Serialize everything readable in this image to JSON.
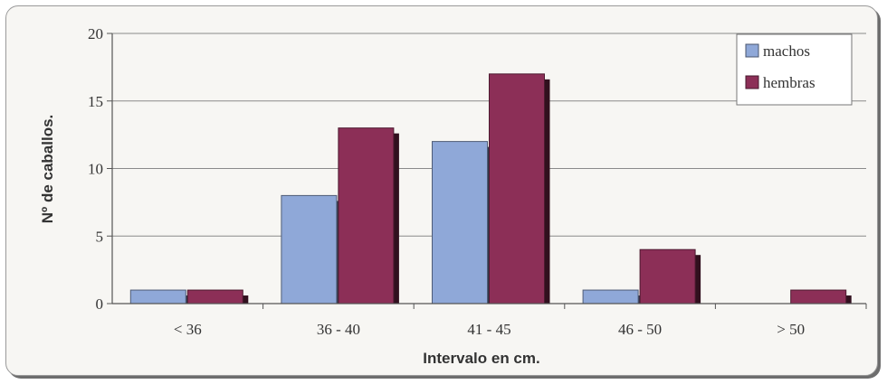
{
  "chart_data": {
    "type": "bar",
    "title": "",
    "xlabel": "Intervalo en cm.",
    "ylabel": "Nº de caballos.",
    "categories": [
      "< 36",
      "36 - 40",
      "41 - 45",
      "46 - 50",
      "> 50"
    ],
    "series": [
      {
        "name": "machos",
        "values": [
          1,
          8,
          12,
          1,
          0
        ],
        "color": "#8fa8d8"
      },
      {
        "name": "hembras",
        "values": [
          1,
          13,
          17,
          4,
          1
        ],
        "color": "#8c2f57"
      }
    ],
    "ylim": [
      0,
      20
    ],
    "yticks": [
      0,
      5,
      10,
      15,
      20
    ],
    "grid": true,
    "legend": "top-right"
  }
}
